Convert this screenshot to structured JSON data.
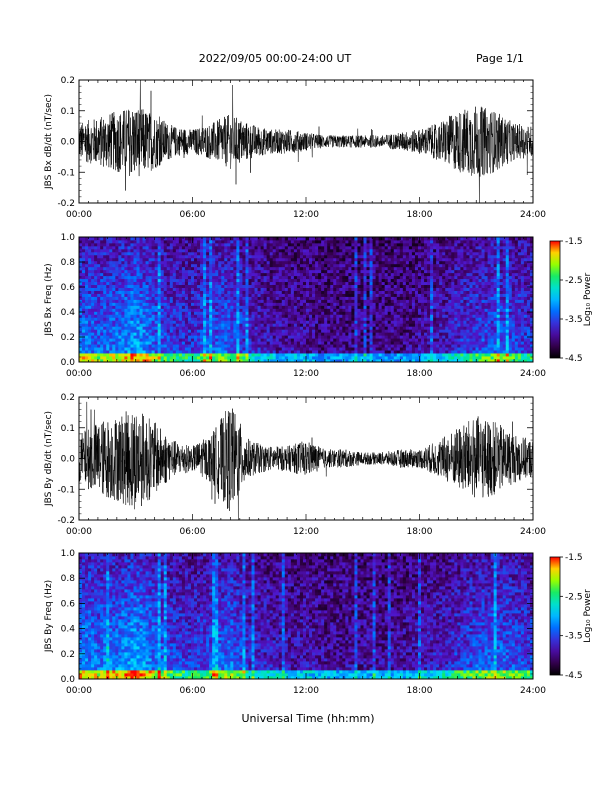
{
  "header": {
    "title": "2022/09/05  00:00-24:00 UT",
    "page": "Page 1/1"
  },
  "xlabel": "Universal Time (hh:mm)",
  "colors": {
    "trace": "#000000",
    "frame": "#000000"
  },
  "chart_data": [
    {
      "type": "line",
      "ylabel": "JBS Bx dB/dt (nT/sec)",
      "xticks": [
        "00:00",
        "06:00",
        "12:00",
        "18:00",
        "24:00"
      ],
      "yticks": [
        "-0.2",
        "-0.1",
        "0.0",
        "0.1",
        "0.2"
      ],
      "xlim": [
        0,
        24
      ],
      "ylim": [
        -0.2,
        0.2
      ],
      "series": [
        {
          "x": [
            0,
            1,
            2,
            3,
            4,
            5,
            6,
            7,
            8,
            9,
            10,
            11,
            12,
            13,
            14,
            15,
            16,
            17,
            18,
            19,
            20,
            21,
            22,
            23,
            24
          ],
          "y_envelope": [
            0.06,
            0.08,
            0.1,
            0.12,
            0.09,
            0.05,
            0.04,
            0.06,
            0.09,
            0.06,
            0.04,
            0.04,
            0.03,
            0.02,
            0.02,
            0.02,
            0.02,
            0.03,
            0.04,
            0.06,
            0.1,
            0.12,
            0.1,
            0.06,
            0.05
          ]
        }
      ]
    },
    {
      "type": "heatmap",
      "ylabel": "JBS Bx Freq (Hz)",
      "xticks": [
        "00:00",
        "06:00",
        "12:00",
        "18:00",
        "24:00"
      ],
      "yticks": [
        "0.0",
        "0.2",
        "0.4",
        "0.6",
        "0.8",
        "1.0"
      ],
      "xlim": [
        0,
        24
      ],
      "ylim": [
        0,
        1
      ],
      "colorbar": {
        "label": "Log₁₀ Power",
        "ticks": [
          "-1.5",
          "-2.5",
          "-3.5",
          "-4.5"
        ],
        "range": [
          -4.5,
          -1.5
        ]
      }
    },
    {
      "type": "line",
      "ylabel": "JBS By dB/dt (nT/sec)",
      "xticks": [
        "00:00",
        "06:00",
        "12:00",
        "18:00",
        "24:00"
      ],
      "yticks": [
        "-0.2",
        "-0.1",
        "0.0",
        "0.1",
        "0.2"
      ],
      "xlim": [
        0,
        24
      ],
      "ylim": [
        -0.2,
        0.2
      ],
      "series": [
        {
          "x": [
            0,
            1,
            2,
            3,
            4,
            5,
            6,
            7,
            8,
            9,
            10,
            11,
            12,
            13,
            14,
            15,
            16,
            17,
            18,
            19,
            20,
            21,
            22,
            23,
            24
          ],
          "y_envelope": [
            0.08,
            0.12,
            0.14,
            0.17,
            0.12,
            0.06,
            0.04,
            0.08,
            0.18,
            0.06,
            0.04,
            0.04,
            0.06,
            0.03,
            0.03,
            0.02,
            0.02,
            0.03,
            0.03,
            0.06,
            0.1,
            0.14,
            0.12,
            0.08,
            0.06
          ]
        }
      ]
    },
    {
      "type": "heatmap",
      "ylabel": "JBS By Freq (Hz)",
      "xticks": [
        "00:00",
        "06:00",
        "12:00",
        "18:00",
        "24:00"
      ],
      "yticks": [
        "0.0",
        "0.2",
        "0.4",
        "0.6",
        "0.8",
        "1.0"
      ],
      "xlim": [
        0,
        24
      ],
      "ylim": [
        0,
        1
      ],
      "colorbar": {
        "label": "Log₁₀ Power",
        "ticks": [
          "-1.5",
          "-2.5",
          "-3.5",
          "-4.5"
        ],
        "range": [
          -4.5,
          -1.5
        ]
      }
    }
  ]
}
